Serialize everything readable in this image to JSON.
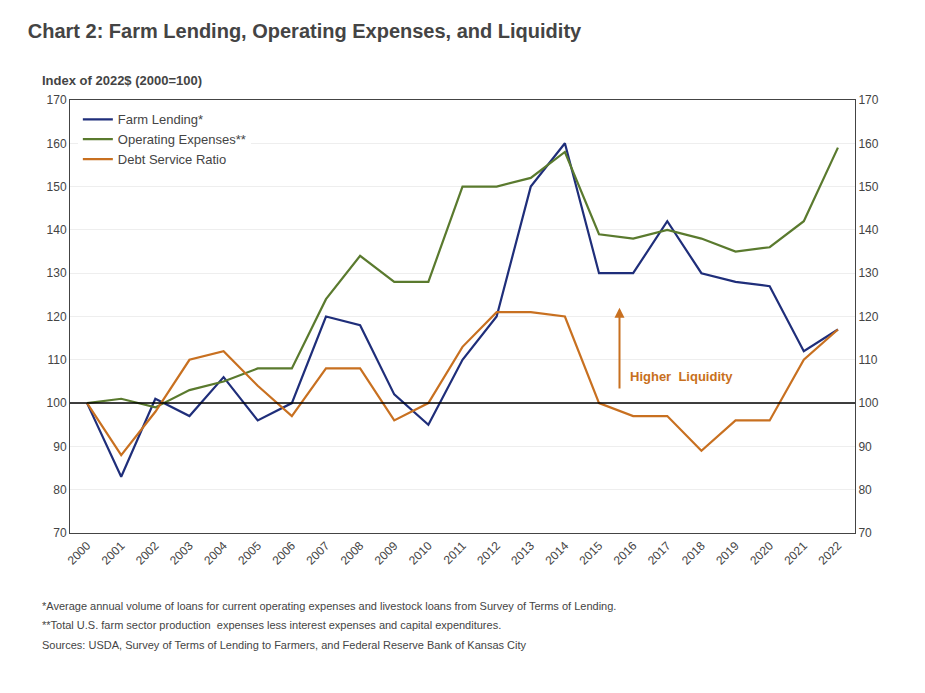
{
  "chart_data": {
    "type": "line",
    "title": "Chart 2: Farm Lending, Operating Expenses, and Liquidity",
    "ylabel": "Index of 2022$ (2000=100)",
    "x": [
      2000,
      2001,
      2002,
      2003,
      2004,
      2005,
      2006,
      2007,
      2008,
      2009,
      2010,
      2011,
      2012,
      2013,
      2014,
      2015,
      2016,
      2017,
      2018,
      2019,
      2020,
      2021,
      2022
    ],
    "series": [
      {
        "name": "Farm Lending*",
        "color": "#1f2e7a",
        "values": [
          100,
          83,
          101,
          97,
          106,
          96,
          100,
          120,
          118,
          102,
          95,
          110,
          120,
          150,
          160,
          130,
          130,
          142,
          130,
          128,
          127,
          112,
          117
        ]
      },
      {
        "name": "Operating Expenses**",
        "color": "#5a7a2e",
        "values": [
          100,
          101,
          99,
          103,
          105,
          108,
          108,
          124,
          134,
          128,
          128,
          150,
          150,
          152,
          158,
          139,
          138,
          140,
          138,
          135,
          136,
          142,
          159
        ]
      },
      {
        "name": "Debt Service Ratio",
        "color": "#c87020",
        "values": [
          100,
          88,
          98,
          110,
          112,
          104,
          97,
          108,
          108,
          96,
          100,
          113,
          121,
          121,
          120,
          100,
          97,
          97,
          89,
          96,
          96,
          110,
          117
        ]
      }
    ],
    "xlim": [
      1999.5,
      2022.5
    ],
    "xticks": [
      2000,
      2001,
      2002,
      2003,
      2004,
      2005,
      2006,
      2007,
      2008,
      2009,
      2010,
      2011,
      2012,
      2013,
      2014,
      2015,
      2016,
      2017,
      2018,
      2019,
      2020,
      2021,
      2022
    ],
    "ylim": [
      70,
      170
    ],
    "yticks": [
      70,
      80,
      90,
      100,
      110,
      120,
      130,
      140,
      150,
      160,
      170
    ],
    "y2lim": [
      70,
      170
    ],
    "y2ticks": [
      70,
      80,
      90,
      100,
      110,
      120,
      130,
      140,
      150,
      160,
      170
    ],
    "grid": "y",
    "legend": "upper left",
    "annotations": [
      {
        "type": "hline",
        "y": 100,
        "color": "#000000"
      },
      {
        "type": "arrow",
        "text": "Higher  Liquidity",
        "x": 2015.6,
        "y_start": 103,
        "y_end": 122,
        "color": "#c87020"
      }
    ],
    "footnotes": [
      "*Average annual volume of loans for current operating expenses and livestock loans from Survey of Terms of Lending.",
      "**Total U.S. farm sector production  expenses less interest expenses and capital expenditures.",
      "Sources: USDA, Survey of Terms of Lending to Farmers, and Federal Reserve Bank of Kansas City"
    ]
  }
}
